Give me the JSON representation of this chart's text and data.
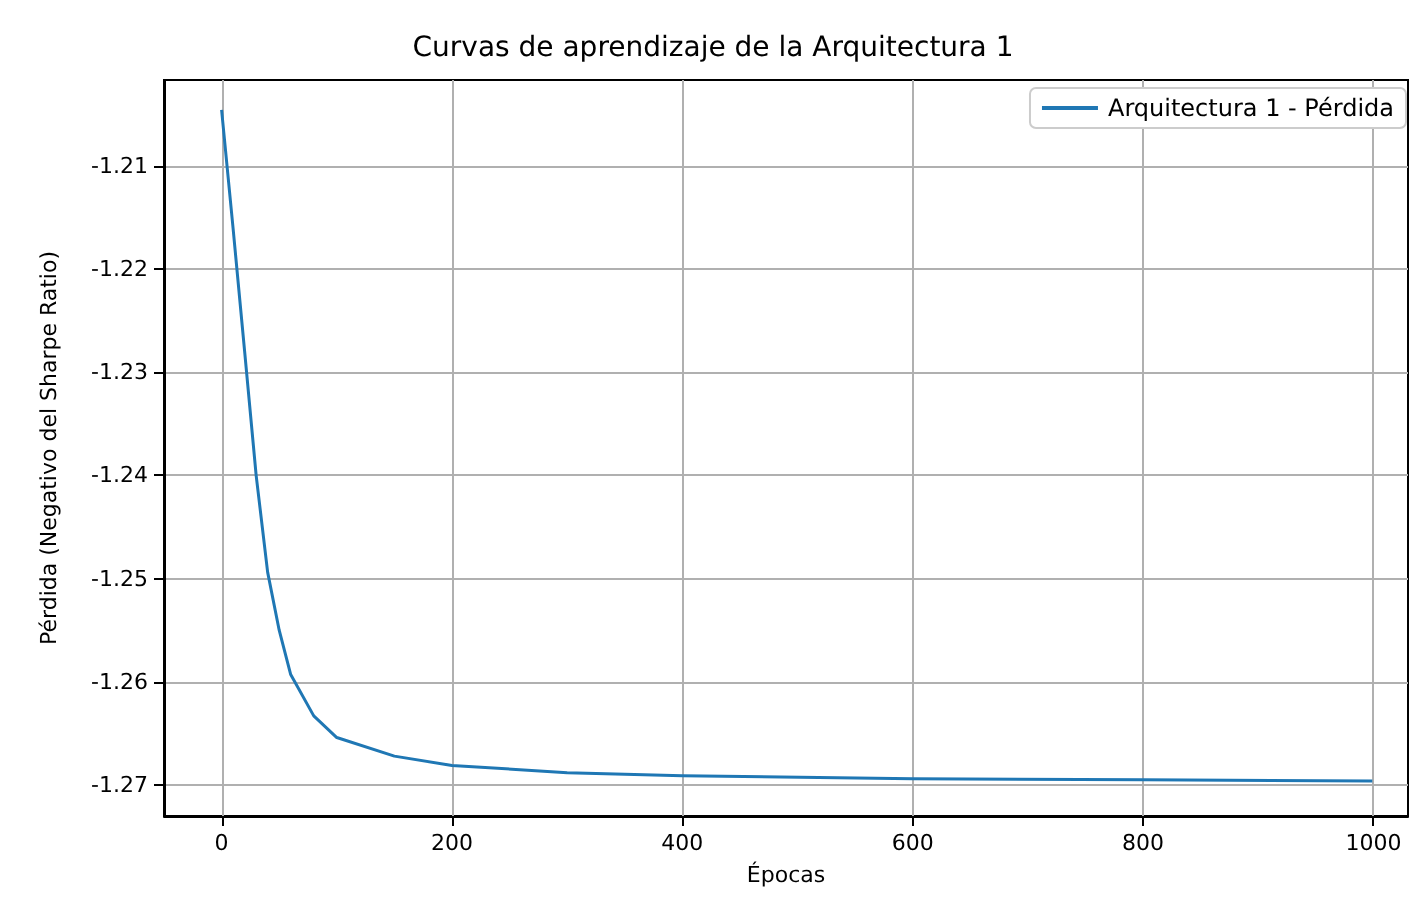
{
  "chart_data": {
    "type": "line",
    "title": "Curvas de aprendizaje de la Arquitectura 1",
    "xlabel": "Épocas",
    "ylabel": "Pérdida (Negativo del Sharpe Ratio)",
    "series": [
      {
        "name": "Arquitectura 1 - Pérdida",
        "color": "#1f77b4",
        "x": [
          0,
          10,
          20,
          30,
          40,
          50,
          60,
          80,
          100,
          150,
          200,
          300,
          400,
          600,
          800,
          999
        ],
        "values": [
          -1.2046,
          -1.2161,
          -1.228,
          -1.24,
          -1.2494,
          -1.255,
          -1.2593,
          -1.2633,
          -1.2654,
          -1.2672,
          -1.2681,
          -1.2688,
          -1.2691,
          -1.2694,
          -1.2695,
          -1.2696
        ]
      }
    ],
    "xlim": [
      -50,
      1030
    ],
    "xticks": [
      0,
      200,
      400,
      600,
      800,
      1000
    ],
    "ylim": [
      -1.273,
      -1.2017
    ],
    "yticks": [
      -1.27,
      -1.26,
      -1.25,
      -1.24,
      -1.23,
      -1.22,
      -1.21
    ],
    "grid": true,
    "legend": "top right",
    "marker": "none",
    "line_style": "solid"
  }
}
